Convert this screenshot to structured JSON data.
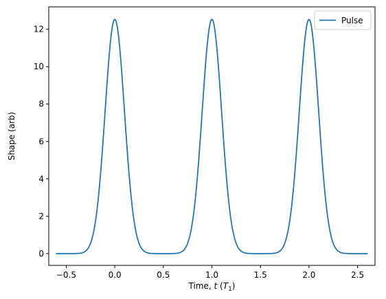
{
  "chart_data": {
    "type": "line",
    "title": "",
    "xlabel": {
      "prefix": "Time, ",
      "var": "t",
      "unit_prefix": " (",
      "unit_var": "T",
      "unit_sub": "1",
      "unit_suffix": ")"
    },
    "ylabel": "Shape (arb)",
    "xlim": [
      -0.68,
      2.68
    ],
    "ylim": [
      -0.63,
      13.2
    ],
    "xticks": [
      -0.5,
      0.0,
      0.5,
      1.0,
      1.5,
      2.0,
      2.5
    ],
    "xtick_labels": [
      "−0.5",
      "0.0",
      "0.5",
      "1.0",
      "1.5",
      "2.0",
      "2.5"
    ],
    "yticks": [
      0,
      2,
      4,
      6,
      8,
      10,
      12
    ],
    "ytick_labels": [
      "0",
      "2",
      "4",
      "6",
      "8",
      "10",
      "12"
    ],
    "grid": false,
    "legend": {
      "placement": "top-right",
      "entries": [
        "Pulse"
      ]
    },
    "series": [
      {
        "name": "Pulse",
        "color": "#1f77b4",
        "x_range": [
          -0.6,
          2.6
        ],
        "peak_centers": [
          0,
          1,
          2
        ],
        "peak_value": 12.53,
        "x": [
          -0.6,
          -0.5,
          -0.4,
          -0.35,
          -0.3,
          -0.25,
          -0.2,
          -0.15,
          -0.1,
          -0.05,
          0.0,
          0.05,
          0.1,
          0.15,
          0.2,
          0.25,
          0.3,
          0.35,
          0.4,
          0.5,
          0.6,
          0.65,
          0.7,
          0.75,
          0.8,
          0.85,
          0.9,
          0.95,
          1.0,
          1.05,
          1.1,
          1.15,
          1.2,
          1.25,
          1.3,
          1.35,
          1.4,
          1.5,
          1.6,
          1.65,
          1.7,
          1.75,
          1.8,
          1.85,
          1.9,
          1.95,
          2.0,
          2.05,
          2.1,
          2.15,
          2.2,
          2.25,
          2.3,
          2.35,
          2.4,
          2.5,
          2.6
        ],
        "y": [
          0.0,
          0.0,
          0.02,
          0.08,
          0.3,
          0.95,
          2.5,
          5.3,
          8.8,
          11.6,
          12.53,
          11.6,
          8.8,
          5.3,
          2.5,
          0.95,
          0.3,
          0.08,
          0.02,
          0.0,
          0.02,
          0.08,
          0.3,
          0.95,
          2.5,
          5.3,
          8.8,
          11.6,
          12.53,
          11.6,
          8.8,
          5.3,
          2.5,
          0.95,
          0.3,
          0.08,
          0.02,
          0.0,
          0.02,
          0.08,
          0.3,
          0.95,
          2.5,
          5.3,
          8.8,
          11.6,
          12.53,
          11.6,
          8.8,
          5.3,
          2.5,
          0.95,
          0.3,
          0.08,
          0.02,
          0.0,
          0.0
        ]
      }
    ]
  }
}
